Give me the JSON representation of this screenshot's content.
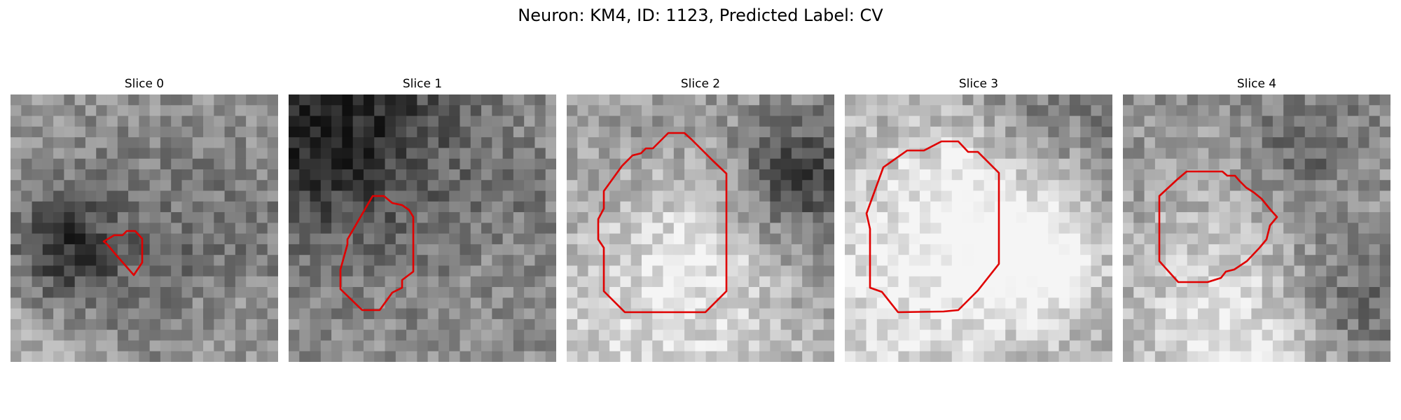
{
  "figure": {
    "title": "Neuron: KM4, ID: 1123, Predicted Label: CV"
  },
  "contour_color": "#e00000",
  "slices": [
    {
      "title": "Slice 0",
      "base_gray": 150,
      "seed": 11
    },
    {
      "title": "Slice 1",
      "base_gray": 140,
      "seed": 23
    },
    {
      "title": "Slice 2",
      "base_gray": 165,
      "seed": 37
    },
    {
      "title": "Slice 3",
      "base_gray": 170,
      "seed": 51
    },
    {
      "title": "Slice 4",
      "base_gray": 140,
      "seed": 67
    }
  ]
}
